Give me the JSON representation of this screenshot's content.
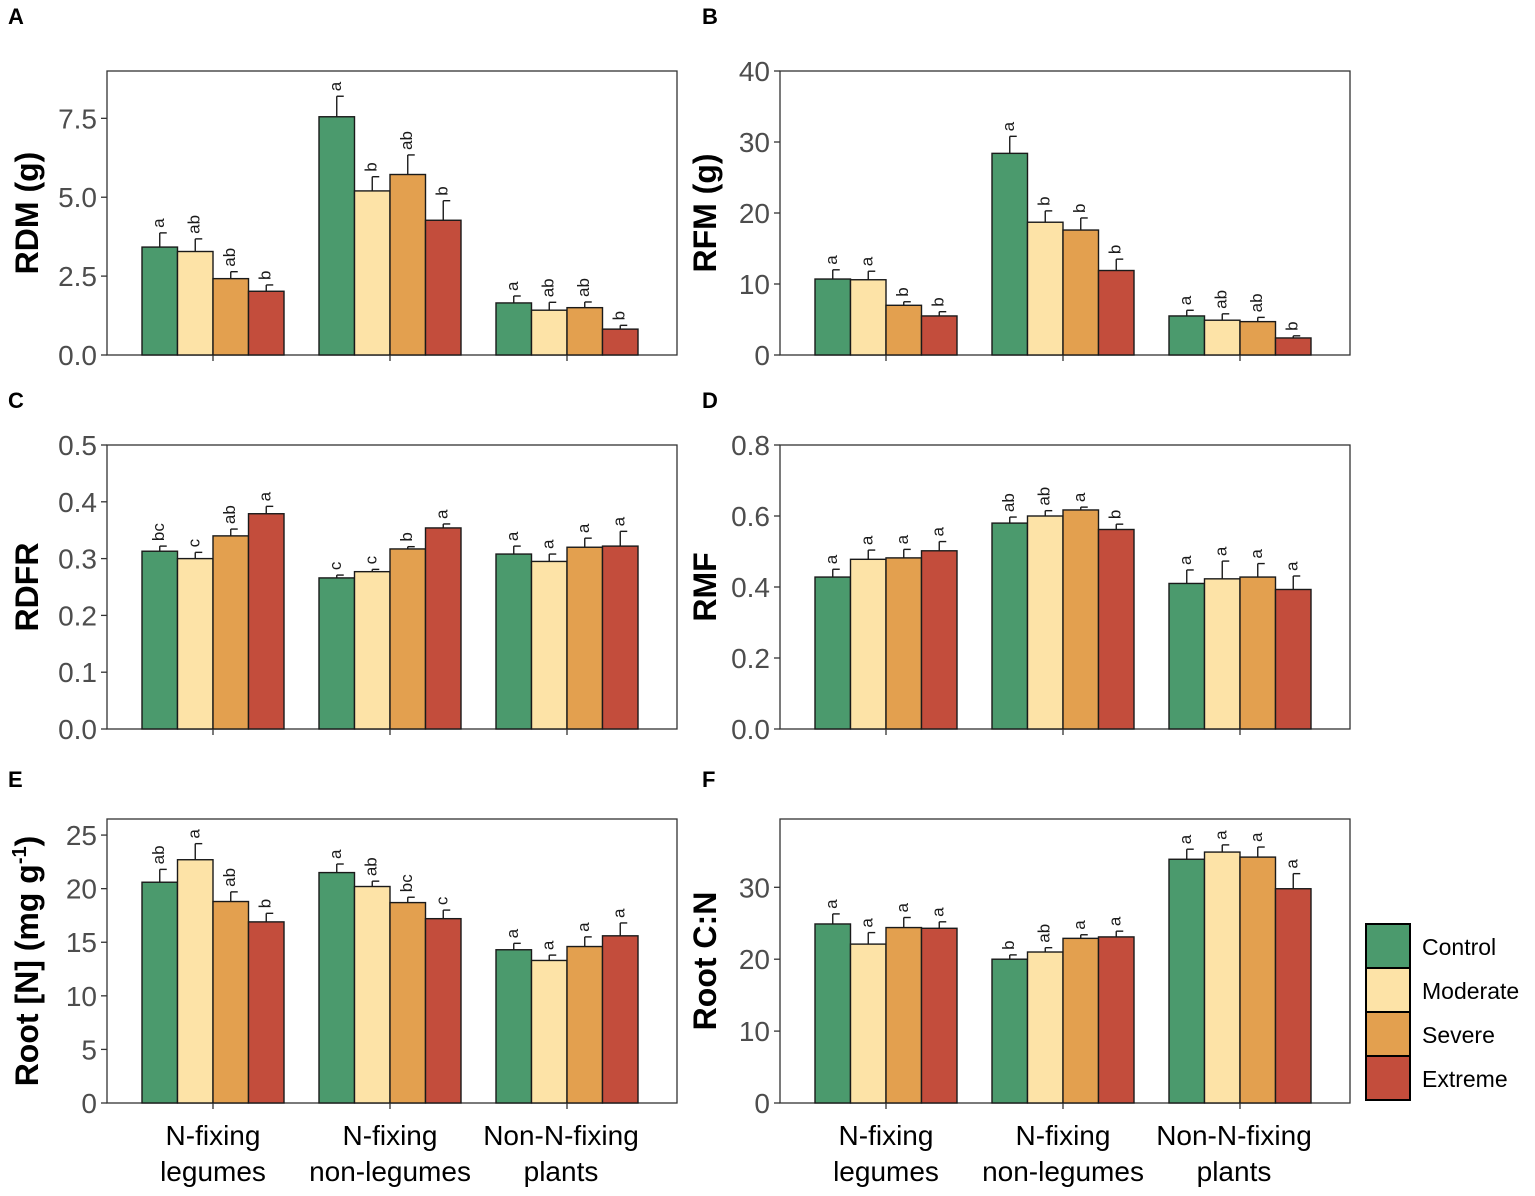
{
  "categories": [
    [
      "N-fixing",
      "legumes"
    ],
    [
      "N-fixing",
      "non-legumes"
    ],
    [
      "Non-N-fixing",
      "plants"
    ]
  ],
  "legend": {
    "items": [
      {
        "label": "Control",
        "color": "#4b9a6d"
      },
      {
        "label": "Moderate",
        "color": "#fde3a7"
      },
      {
        "label": "Severe",
        "color": "#e3a04f"
      },
      {
        "label": "Extreme",
        "color": "#c34d3c"
      }
    ]
  },
  "chart_data": [
    {
      "type": "bar",
      "panel": "A",
      "title": "",
      "ylabel": "RDM (g)",
      "ylim": [
        0,
        9
      ],
      "yticks": [
        "0.0",
        "2.5",
        "5.0",
        "7.5"
      ],
      "categories": [
        "N-fixing legumes",
        "N-fixing non-legumes",
        "Non-N-fixing plants"
      ],
      "series": [
        {
          "name": "Control",
          "values": [
            3.42,
            7.55,
            1.65
          ],
          "errors": [
            0.45,
            0.65,
            0.22
          ],
          "labels": [
            "a",
            "a",
            "a"
          ]
        },
        {
          "name": "Moderate",
          "values": [
            3.28,
            5.2,
            1.42
          ],
          "errors": [
            0.4,
            0.45,
            0.25
          ],
          "labels": [
            "ab",
            "b",
            "ab"
          ]
        },
        {
          "name": "Severe",
          "values": [
            2.42,
            5.72,
            1.5
          ],
          "errors": [
            0.22,
            0.62,
            0.18
          ],
          "labels": [
            "ab",
            "ab",
            "ab"
          ]
        },
        {
          "name": "Extreme",
          "values": [
            2.02,
            4.27,
            0.82
          ],
          "errors": [
            0.2,
            0.62,
            0.12
          ],
          "labels": [
            "b",
            "b",
            "b"
          ]
        }
      ]
    },
    {
      "type": "bar",
      "panel": "B",
      "title": "",
      "ylabel": "RFM (g)",
      "ylim": [
        0,
        40
      ],
      "yticks": [
        "0",
        "10",
        "20",
        "30",
        "40"
      ],
      "categories": [
        "N-fixing legumes",
        "N-fixing non-legumes",
        "Non-N-fixing plants"
      ],
      "series": [
        {
          "name": "Control",
          "values": [
            10.7,
            28.4,
            5.5
          ],
          "errors": [
            1.3,
            2.4,
            0.8
          ],
          "labels": [
            "a",
            "a",
            "a"
          ]
        },
        {
          "name": "Moderate",
          "values": [
            10.6,
            18.7,
            4.9
          ],
          "errors": [
            1.2,
            1.6,
            0.9
          ],
          "labels": [
            "a",
            "b",
            "ab"
          ]
        },
        {
          "name": "Severe",
          "values": [
            7.0,
            17.6,
            4.7
          ],
          "errors": [
            0.5,
            1.7,
            0.6
          ],
          "labels": [
            "b",
            "b",
            "ab"
          ]
        },
        {
          "name": "Extreme",
          "values": [
            5.5,
            11.9,
            2.4
          ],
          "errors": [
            0.6,
            1.6,
            0.3
          ],
          "labels": [
            "b",
            "b",
            "b"
          ]
        }
      ]
    },
    {
      "type": "bar",
      "panel": "C",
      "title": "",
      "ylabel": "RDFR",
      "ylim": [
        0,
        0.5
      ],
      "yticks": [
        "0.0",
        "0.1",
        "0.2",
        "0.3",
        "0.4",
        "0.5"
      ],
      "categories": [
        "N-fixing legumes",
        "N-fixing non-legumes",
        "Non-N-fixing plants"
      ],
      "series": [
        {
          "name": "Control",
          "values": [
            0.313,
            0.266,
            0.308
          ],
          "errors": [
            0.009,
            0.005,
            0.014
          ],
          "labels": [
            "bc",
            "c",
            "a"
          ]
        },
        {
          "name": "Moderate",
          "values": [
            0.3,
            0.277,
            0.295
          ],
          "errors": [
            0.011,
            0.004,
            0.013
          ],
          "labels": [
            "c",
            "c",
            "a"
          ]
        },
        {
          "name": "Severe",
          "values": [
            0.34,
            0.317,
            0.32
          ],
          "errors": [
            0.012,
            0.004,
            0.016
          ],
          "labels": [
            "ab",
            "b",
            "a"
          ]
        },
        {
          "name": "Extreme",
          "values": [
            0.379,
            0.354,
            0.322
          ],
          "errors": [
            0.013,
            0.007,
            0.026
          ],
          "labels": [
            "a",
            "a",
            "a"
          ]
        }
      ]
    },
    {
      "type": "bar",
      "panel": "D",
      "title": "",
      "ylabel": "RMF",
      "ylim": [
        0,
        0.8
      ],
      "yticks": [
        "0.0",
        "0.2",
        "0.4",
        "0.6",
        "0.8"
      ],
      "categories": [
        "N-fixing legumes",
        "N-fixing non-legumes",
        "Non-N-fixing plants"
      ],
      "series": [
        {
          "name": "Control",
          "values": [
            0.428,
            0.58,
            0.41
          ],
          "errors": [
            0.022,
            0.017,
            0.038
          ],
          "labels": [
            "a",
            "ab",
            "a"
          ]
        },
        {
          "name": "Moderate",
          "values": [
            0.478,
            0.6,
            0.423
          ],
          "errors": [
            0.026,
            0.015,
            0.05
          ],
          "labels": [
            "a",
            "ab",
            "a"
          ]
        },
        {
          "name": "Severe",
          "values": [
            0.482,
            0.617,
            0.428
          ],
          "errors": [
            0.024,
            0.008,
            0.038
          ],
          "labels": [
            "a",
            "a",
            "a"
          ]
        },
        {
          "name": "Extreme",
          "values": [
            0.502,
            0.562,
            0.393
          ],
          "errors": [
            0.026,
            0.015,
            0.038
          ],
          "labels": [
            "a",
            "b",
            "a"
          ]
        }
      ]
    },
    {
      "type": "bar",
      "panel": "E",
      "title": "",
      "ylabel": "Root [N] (mg g",
      "ylabel_sup": "-1",
      "ylabel_end": ")",
      "ylim": [
        0,
        26.5
      ],
      "yticks": [
        "0",
        "5",
        "10",
        "15",
        "20",
        "25"
      ],
      "categories": [
        "N-fixing legumes",
        "N-fixing non-legumes",
        "Non-N-fixing plants"
      ],
      "series": [
        {
          "name": "Control",
          "values": [
            20.6,
            21.5,
            14.3
          ],
          "errors": [
            1.2,
            0.8,
            0.6
          ],
          "labels": [
            "ab",
            "a",
            "a"
          ]
        },
        {
          "name": "Moderate",
          "values": [
            22.7,
            20.2,
            13.3
          ],
          "errors": [
            1.5,
            0.5,
            0.5
          ],
          "labels": [
            "a",
            "ab",
            "a"
          ]
        },
        {
          "name": "Severe",
          "values": [
            18.8,
            18.7,
            14.6
          ],
          "errors": [
            0.9,
            0.5,
            0.9
          ],
          "labels": [
            "ab",
            "bc",
            "a"
          ]
        },
        {
          "name": "Extreme",
          "values": [
            16.9,
            17.2,
            15.6
          ],
          "errors": [
            0.8,
            0.8,
            1.2
          ],
          "labels": [
            "b",
            "c",
            "a"
          ]
        }
      ]
    },
    {
      "type": "bar",
      "panel": "F",
      "title": "",
      "ylabel": "Root C:N",
      "ylim": [
        0,
        39.5
      ],
      "yticks": [
        "0",
        "10",
        "20",
        "30"
      ],
      "categories": [
        "N-fixing legumes",
        "N-fixing non-legumes",
        "Non-N-fixing plants"
      ],
      "series": [
        {
          "name": "Control",
          "values": [
            24.9,
            20.0,
            33.9
          ],
          "errors": [
            1.4,
            0.6,
            1.4
          ],
          "labels": [
            "a",
            "b",
            "a"
          ]
        },
        {
          "name": "Moderate",
          "values": [
            22.1,
            21.0,
            34.9
          ],
          "errors": [
            1.6,
            0.6,
            1.0
          ],
          "labels": [
            "a",
            "ab",
            "a"
          ]
        },
        {
          "name": "Severe",
          "values": [
            24.4,
            22.9,
            34.2
          ],
          "errors": [
            1.4,
            0.5,
            1.4
          ],
          "labels": [
            "a",
            "a",
            "a"
          ]
        },
        {
          "name": "Extreme",
          "values": [
            24.3,
            23.1,
            29.8
          ],
          "errors": [
            0.9,
            0.8,
            2.1
          ],
          "labels": [
            "a",
            "a",
            "a"
          ]
        }
      ]
    }
  ]
}
